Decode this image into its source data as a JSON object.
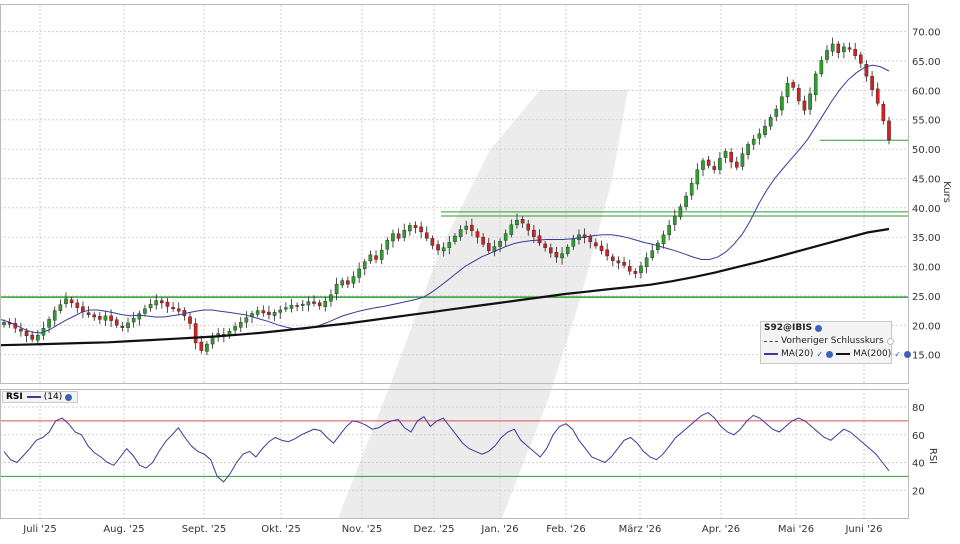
{
  "colors": {
    "up": "#2e9e2e",
    "down": "#d42020",
    "ma20": "#3a3a9a",
    "ma200": "#111111",
    "rsi": "#3a3a9a",
    "support": "#2e9e2e",
    "rsi_upper": "#e05050",
    "rsi_lower": "#2e9e2e",
    "grid": "#cfcfcf",
    "watermark": "#dcdcdc"
  },
  "legend": {
    "symbol": "S92@IBIS",
    "prev_close_label": "Vorheriger Schlusskurs",
    "ma20_label": "MA(20)",
    "ma200_label": "MA(200)",
    "symbol_icon": "globe-icon",
    "check_icon": "check-icon"
  },
  "rsi_legend": {
    "name": "RSI",
    "param": "(14)"
  },
  "chart_data": [
    {
      "type": "candlestick",
      "title": "",
      "ylabel": "Kurs",
      "ylim": [
        10,
        73
      ],
      "yticks": [
        15,
        20,
        25,
        30,
        35,
        40,
        45,
        50,
        55,
        60,
        65,
        70
      ],
      "ytick_labels": [
        "15.00",
        "20.00",
        "25.00",
        "30.00",
        "35.00",
        "40.00",
        "45.00",
        "50.00",
        "55.00",
        "60.00",
        "65.00",
        "70.00"
      ],
      "x_months": [
        "Juli '25",
        "Aug. '25",
        "Sept. '25",
        "Okt. '25",
        "Nov. '25",
        "Dez. '25",
        "Jan. '26",
        "Feb. '26",
        "März '26",
        "Apr. '26",
        "Mai '26",
        "Juni '26"
      ],
      "horizontal_levels": [
        24.8,
        38.6,
        39.3,
        51.5
      ],
      "close_series": [
        20.5,
        20.2,
        19.5,
        19.0,
        18.2,
        17.6,
        18.3,
        19.5,
        21.0,
        22.5,
        23.5,
        24.5,
        23.8,
        23.0,
        22.3,
        21.8,
        21.4,
        21.0,
        21.6,
        20.8,
        20.0,
        19.6,
        20.4,
        21.2,
        22.0,
        22.8,
        23.6,
        24.2,
        23.8,
        23.2,
        22.8,
        22.4,
        21.6,
        20.3,
        17.0,
        15.7,
        16.8,
        18.0,
        18.6,
        18.2,
        19.0,
        19.8,
        20.5,
        21.3,
        22.0,
        22.5,
        22.1,
        21.8,
        22.2,
        22.6,
        23.0,
        23.4,
        23.2,
        23.6,
        24.0,
        23.7,
        23.3,
        24.1,
        25.2,
        27.0,
        27.6,
        27.0,
        28.3,
        29.6,
        30.8,
        32.0,
        31.2,
        32.8,
        34.5,
        35.6,
        34.8,
        36.2,
        37.0,
        36.6,
        35.9,
        34.8,
        33.6,
        32.8,
        33.2,
        34.1,
        35.2,
        36.3,
        36.9,
        36.1,
        35.0,
        33.8,
        32.7,
        33.4,
        34.3,
        35.6,
        37.1,
        37.9,
        37.4,
        36.2,
        35.1,
        34.0,
        33.2,
        32.3,
        31.6,
        32.2,
        33.3,
        34.7,
        35.4,
        34.9,
        34.2,
        33.5,
        32.7,
        31.8,
        31.0,
        30.6,
        30.2,
        29.2,
        28.8,
        30.1,
        31.5,
        32.7,
        34.0,
        35.4,
        37.0,
        38.6,
        40.2,
        42.0,
        44.2,
        46.5,
        48.0,
        47.2,
        46.5,
        48.4,
        49.6,
        47.8,
        46.9,
        49.2,
        50.8,
        51.7,
        52.6,
        53.9,
        55.4,
        56.8,
        58.9,
        61.2,
        60.5,
        58.2,
        56.6,
        59.4,
        62.8,
        65.1,
        66.8,
        67.9,
        66.4,
        67.4,
        67.0,
        65.9,
        64.6,
        62.4,
        60.1,
        57.8,
        54.8,
        51.6
      ],
      "ma20": [
        21.0,
        20.6,
        20.0,
        19.3,
        18.8,
        18.7,
        19.2,
        20.0,
        20.8,
        21.5,
        22.2,
        22.6,
        22.6,
        22.4,
        22.1,
        21.8,
        21.6,
        21.7,
        21.6,
        21.4,
        21.4,
        21.6,
        21.8,
        22.1,
        22.4,
        22.6,
        22.6,
        22.4,
        22.2,
        22.0,
        21.8,
        21.4,
        21.0,
        20.6,
        20.1,
        19.7,
        19.4,
        19.3,
        19.5,
        19.9,
        20.4,
        21.0,
        21.6,
        22.0,
        22.4,
        22.7,
        23.0,
        23.2,
        23.5,
        23.8,
        24.1,
        24.4,
        24.8,
        25.7,
        26.7,
        27.8,
        28.9,
        30.0,
        30.8,
        31.6,
        32.2,
        32.8,
        33.4,
        33.9,
        34.2,
        34.4,
        34.5,
        34.6,
        34.6,
        34.6,
        34.7,
        34.9,
        35.1,
        35.3,
        35.4,
        35.4,
        35.2,
        34.9,
        34.5,
        34.1,
        33.8,
        33.4,
        33.0,
        32.6,
        32.1,
        31.6,
        31.2,
        31.2,
        31.6,
        32.5,
        33.8,
        35.5,
        37.8,
        40.6,
        43.0,
        45.0,
        46.7,
        48.3,
        49.9,
        51.6,
        53.8,
        56.0,
        58.2,
        60.2,
        61.8,
        63.0,
        63.9,
        64.3,
        64.0,
        63.3
      ],
      "ma200": [
        16.6,
        16.7,
        16.8,
        16.9,
        17.0,
        17.1,
        17.3,
        17.5,
        17.7,
        17.9,
        18.1,
        18.4,
        18.7,
        19.1,
        19.5,
        19.9,
        20.3,
        20.8,
        21.3,
        21.8,
        22.3,
        22.8,
        23.3,
        23.8,
        24.3,
        24.8,
        25.3,
        25.7,
        26.1,
        26.5,
        26.9,
        27.5,
        28.2,
        29.0,
        29.9,
        30.8,
        31.8,
        32.8,
        33.8,
        34.8,
        35.8,
        36.4
      ]
    },
    {
      "type": "line",
      "title": "",
      "ylabel": "RSI",
      "ylim": [
        0,
        93
      ],
      "yticks": [
        20,
        40,
        60,
        80
      ],
      "ytick_labels": [
        "20",
        "40",
        "60",
        "80"
      ],
      "reference_lines": [
        70,
        30
      ],
      "values": [
        48,
        42,
        40,
        45,
        50,
        56,
        58,
        62,
        70,
        72,
        68,
        62,
        60,
        52,
        47,
        44,
        40,
        38,
        44,
        50,
        45,
        38,
        36,
        40,
        48,
        55,
        60,
        65,
        58,
        52,
        48,
        46,
        42,
        30,
        26,
        32,
        40,
        46,
        48,
        44,
        50,
        55,
        58,
        56,
        55,
        57,
        60,
        62,
        64,
        63,
        58,
        54,
        60,
        66,
        70,
        69,
        67,
        64,
        65,
        68,
        70,
        71,
        65,
        62,
        70,
        73,
        66,
        70,
        72,
        66,
        60,
        54,
        50,
        48,
        46,
        48,
        52,
        58,
        62,
        64,
        56,
        52,
        48,
        44,
        50,
        60,
        66,
        68,
        64,
        56,
        50,
        44,
        42,
        40,
        44,
        50,
        56,
        58,
        54,
        48,
        44,
        42,
        46,
        52,
        58,
        62,
        66,
        70,
        74,
        76,
        72,
        66,
        62,
        60,
        64,
        70,
        74,
        72,
        68,
        64,
        62,
        66,
        70,
        72,
        70,
        66,
        62,
        58,
        56,
        60,
        64,
        62,
        58,
        54,
        50,
        46,
        40,
        34
      ]
    }
  ]
}
